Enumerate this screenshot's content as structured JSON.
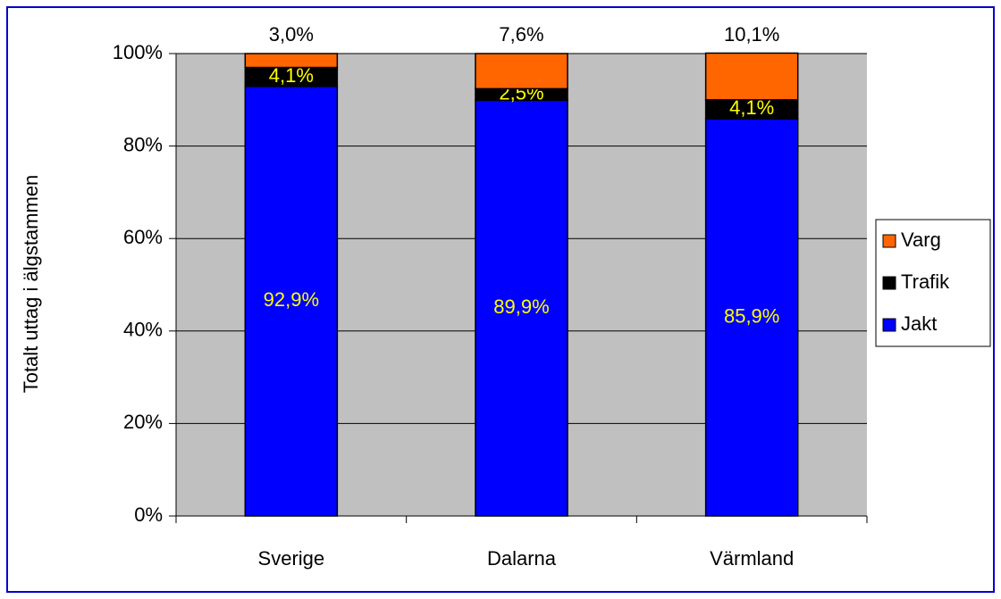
{
  "chart_data": {
    "type": "stacked_bar",
    "y_label": "Totalt uttag i älgstammen",
    "categories": [
      "Sverige",
      "Dalarna",
      "Värmland"
    ],
    "series": [
      {
        "name": "Jakt",
        "color": "#0000ff",
        "values": [
          92.9,
          89.9,
          85.9
        ],
        "value_labels": [
          "92,9%",
          "89,9%",
          "85,9%"
        ]
      },
      {
        "name": "Trafik",
        "color": "#000000",
        "values": [
          4.1,
          2.5,
          4.1
        ],
        "value_labels": [
          "4,1%",
          "2,5%",
          "4,1%"
        ]
      },
      {
        "name": "Varg",
        "color": "#ff6600",
        "values": [
          3.0,
          7.6,
          10.1
        ],
        "value_labels": [
          "3,0%",
          "7,6%",
          "10,1%"
        ]
      }
    ],
    "ylim": [
      0,
      100
    ],
    "yticks": [
      {
        "value": 0,
        "label": "0%"
      },
      {
        "value": 20,
        "label": "20%"
      },
      {
        "value": 40,
        "label": "40%"
      },
      {
        "value": 60,
        "label": "60%"
      },
      {
        "value": 80,
        "label": "80%"
      },
      {
        "value": 100,
        "label": "100%"
      }
    ],
    "grid": true,
    "legend": "right"
  }
}
